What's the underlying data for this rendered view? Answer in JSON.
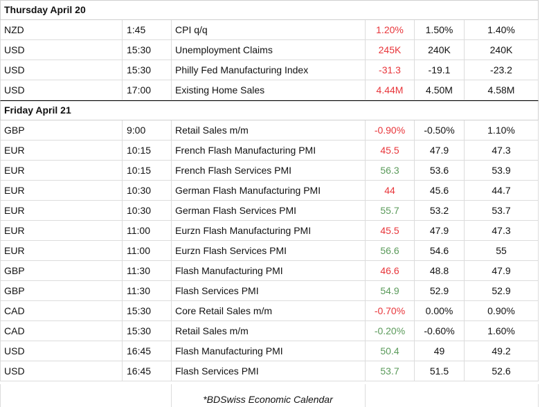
{
  "days": [
    {
      "heading": "Thursday April 20",
      "rows": [
        {
          "currency": "NZD",
          "time": "1:45",
          "event": "CPI q/q",
          "actual": "1.20%",
          "actual_color": "red",
          "forecast": "1.50%",
          "previous": "1.40%"
        },
        {
          "currency": "USD",
          "time": "15:30",
          "event": "Unemployment Claims",
          "actual": "245K",
          "actual_color": "red",
          "forecast": "240K",
          "previous": "240K"
        },
        {
          "currency": "USD",
          "time": "15:30",
          "event": "Philly Fed Manufacturing Index",
          "actual": "-31.3",
          "actual_color": "red",
          "forecast": "-19.1",
          "previous": "-23.2"
        },
        {
          "currency": "USD",
          "time": "17:00",
          "event": "Existing Home Sales",
          "actual": "4.44M",
          "actual_color": "red",
          "forecast": "4.50M",
          "previous": "4.58M"
        }
      ]
    },
    {
      "heading": "Friday April 21",
      "rows": [
        {
          "currency": "GBP",
          "time": "9:00",
          "event": "Retail Sales m/m",
          "actual": "-0.90%",
          "actual_color": "red",
          "forecast": "-0.50%",
          "previous": "1.10%"
        },
        {
          "currency": "EUR",
          "time": "10:15",
          "event": "French Flash Manufacturing PMI",
          "actual": "45.5",
          "actual_color": "red",
          "forecast": "47.9",
          "previous": "47.3"
        },
        {
          "currency": "EUR",
          "time": "10:15",
          "event": "French Flash Services PMI",
          "actual": "56.3",
          "actual_color": "green",
          "forecast": "53.6",
          "previous": "53.9"
        },
        {
          "currency": "EUR",
          "time": "10:30",
          "event": "German Flash Manufacturing PMI",
          "actual": "44",
          "actual_color": "red",
          "forecast": "45.6",
          "previous": "44.7"
        },
        {
          "currency": "EUR",
          "time": "10:30",
          "event": "German Flash Services PMI",
          "actual": "55.7",
          "actual_color": "green",
          "forecast": "53.2",
          "previous": "53.7"
        },
        {
          "currency": "EUR",
          "time": "11:00",
          "event": "Eurzn Flash Manufacturing PMI",
          "actual": "45.5",
          "actual_color": "red",
          "forecast": "47.9",
          "previous": "47.3"
        },
        {
          "currency": "EUR",
          "time": "11:00",
          "event": "Eurzn Flash Services PMI",
          "actual": "56.6",
          "actual_color": "green",
          "forecast": "54.6",
          "previous": "55"
        },
        {
          "currency": "GBP",
          "time": "11:30",
          "event": "Flash Manufacturing PMI",
          "actual": "46.6",
          "actual_color": "red",
          "forecast": "48.8",
          "previous": "47.9"
        },
        {
          "currency": "GBP",
          "time": "11:30",
          "event": "Flash Services PMI",
          "actual": "54.9",
          "actual_color": "green",
          "forecast": "52.9",
          "previous": "52.9"
        },
        {
          "currency": "CAD",
          "time": "15:30",
          "event": "Core Retail Sales m/m",
          "actual": "-0.70%",
          "actual_color": "red",
          "forecast": "0.00%",
          "previous": "0.90%"
        },
        {
          "currency": "CAD",
          "time": "15:30",
          "event": "Retail Sales m/m",
          "actual": "-0.20%",
          "actual_color": "green",
          "forecast": "-0.60%",
          "previous": "1.60%"
        },
        {
          "currency": "USD",
          "time": "16:45",
          "event": "Flash Manufacturing PMI",
          "actual": "50.4",
          "actual_color": "green",
          "forecast": "49",
          "previous": "49.2"
        },
        {
          "currency": "USD",
          "time": "16:45",
          "event": "Flash Services PMI",
          "actual": "53.7",
          "actual_color": "green",
          "forecast": "51.5",
          "previous": "52.6"
        }
      ]
    }
  ],
  "footer": {
    "note": "*BDSwiss Economic Calendar"
  },
  "colors": {
    "red": "#e8353a",
    "green": "#5a9a5a"
  }
}
